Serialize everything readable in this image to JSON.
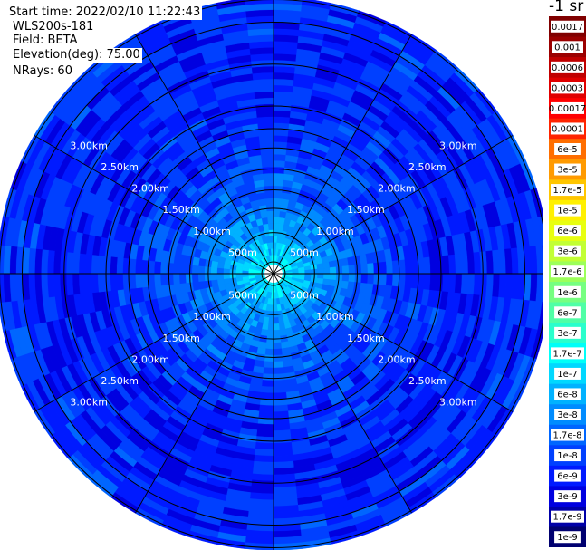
{
  "header": {
    "start_time": "Start time: 2022/02/10 11:22:43",
    "station": "WLS200s-181",
    "field": "Field: BETA",
    "elevation": "Elevation(deg): 75.00",
    "nrays": "NRays: 60"
  },
  "colorbar": {
    "unit_text": "-1 sr",
    "labels": [
      "0.0017",
      "0.001",
      "0.0006",
      "0.0003",
      "0.00017",
      "0.0001",
      "6e-5",
      "3e-5",
      "1.7e-5",
      "1e-5",
      "6e-6",
      "3e-6",
      "1.7e-6",
      "1e-6",
      "6e-7",
      "3e-7",
      "1.7e-7",
      "1e-7",
      "6e-8",
      "3e-8",
      "1.7e-8",
      "1e-8",
      "6e-9",
      "3e-9",
      "1.7e-9",
      "1e-9"
    ],
    "colors": [
      "#800000",
      "#9b0000",
      "#c00000",
      "#e00000",
      "#ff0000",
      "#ff2400",
      "#ff6e00",
      "#ff9a00",
      "#ffc600",
      "#fff000",
      "#e8ff10",
      "#c2ff34",
      "#9cff5a",
      "#76ff80",
      "#50ffa6",
      "#2affcc",
      "#00fff8",
      "#00d8ff",
      "#00b2ff",
      "#008cff",
      "#0066ff",
      "#0040ff",
      "#001aff",
      "#0000e0",
      "#0000a8",
      "#000070"
    ]
  },
  "chart_data": {
    "type": "ppi",
    "title": "",
    "range_ring_labels_km": [
      "500m",
      "1.00km",
      "1.50km",
      "2.00km",
      "2.50km",
      "3.00km"
    ],
    "range_rings_km": [
      0.5,
      1.0,
      1.5,
      2.0,
      2.5,
      3.0
    ],
    "n_rays": 60,
    "field": "BETA",
    "unit": "sr-1",
    "radial_mean_beta": [
      {
        "range_km": 0.05,
        "beta": 2e-07
      },
      {
        "range_km": 0.25,
        "beta": 1.2e-07
      },
      {
        "range_km": 0.5,
        "beta": 6e-08
      },
      {
        "range_km": 0.8,
        "beta": 3e-08
      },
      {
        "range_km": 1.0,
        "beta": 2e-08
      },
      {
        "range_km": 1.5,
        "beta": 1.2e-08
      },
      {
        "range_km": 2.0,
        "beta": 9e-09
      },
      {
        "range_km": 2.5,
        "beta": 8e-09
      },
      {
        "range_km": 3.0,
        "beta": 9e-09
      },
      {
        "range_km": 3.2,
        "beta": 1e-08
      }
    ]
  }
}
